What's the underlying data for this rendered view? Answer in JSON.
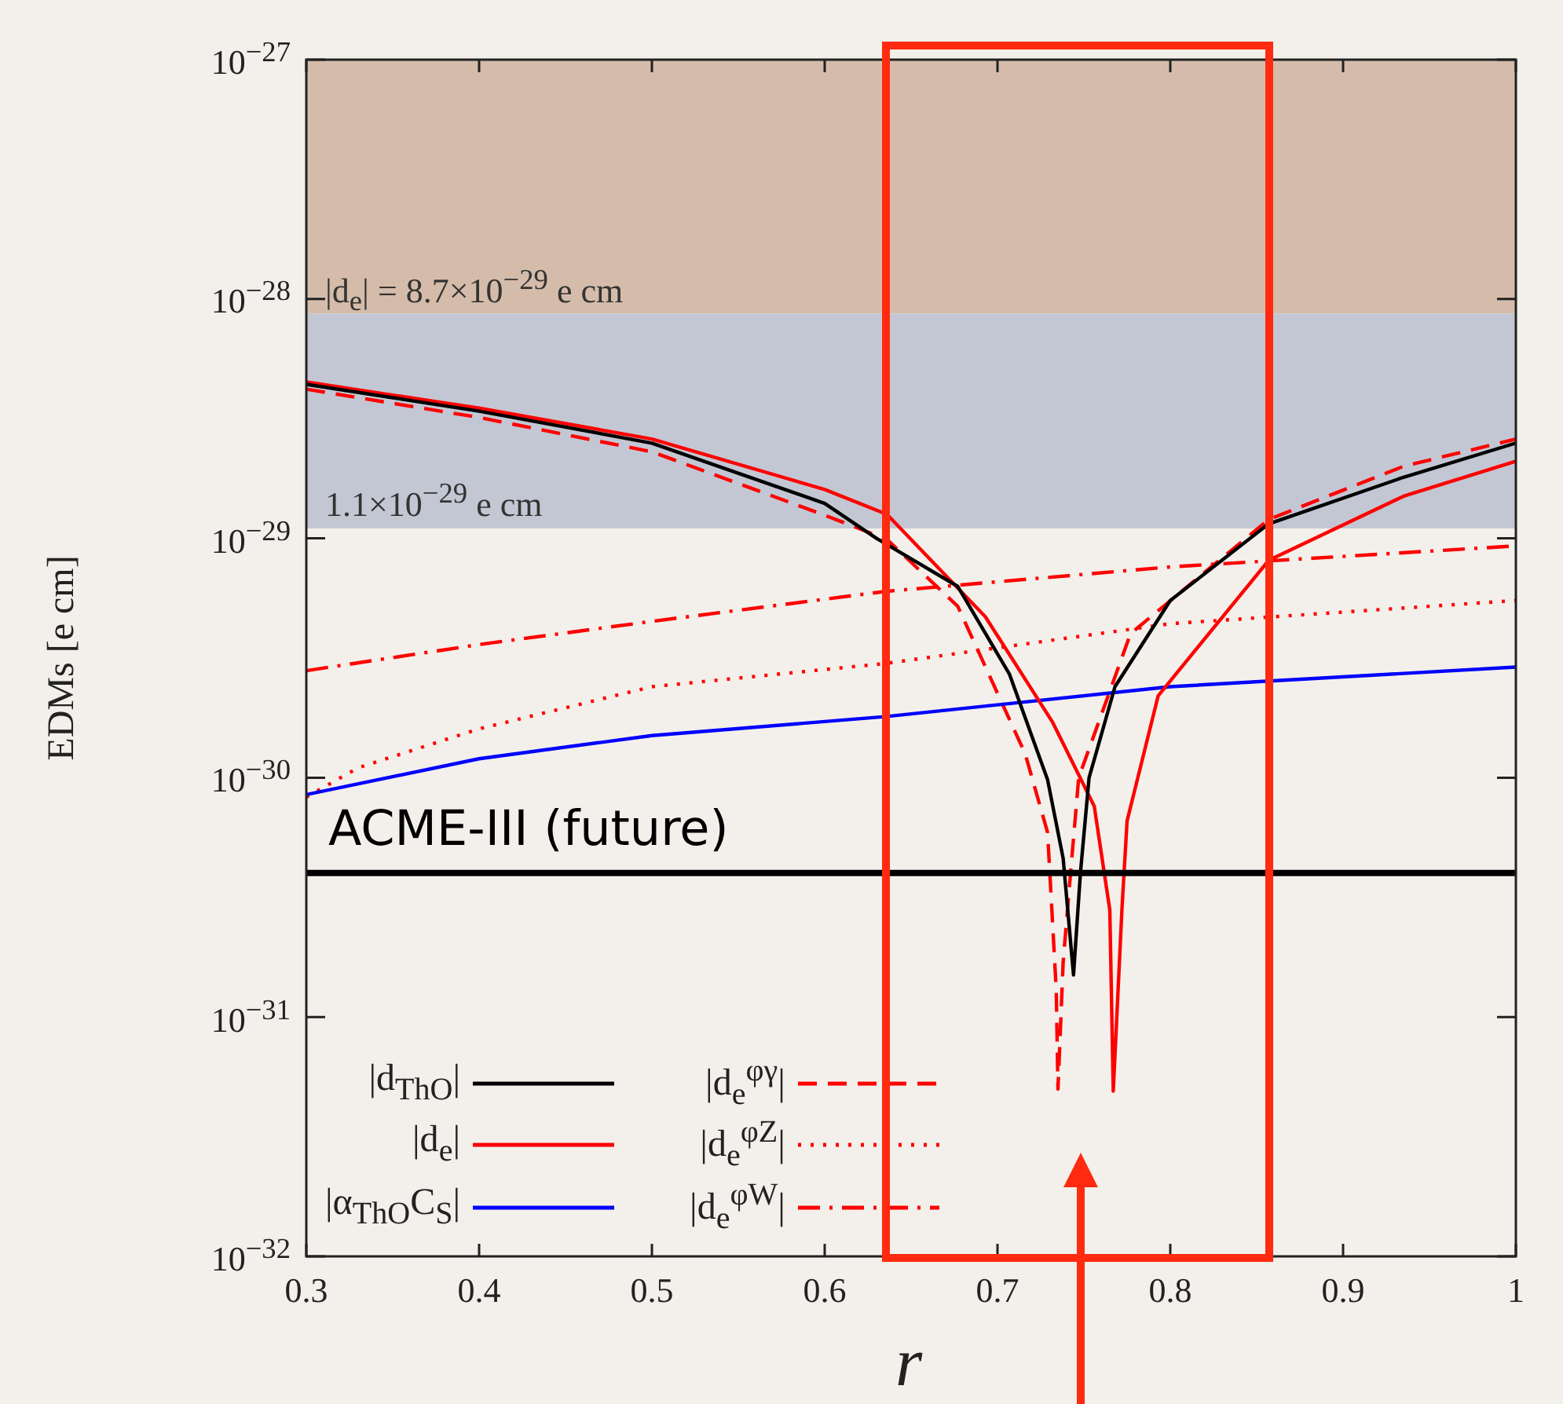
{
  "chart_data": {
    "type": "line",
    "xlabel": "r",
    "ylabel": "EDMs [e cm]",
    "xlim": [
      0.3,
      1
    ],
    "xticks": [
      0.3,
      0.4,
      0.5,
      0.6,
      0.7,
      0.8,
      0.9,
      1
    ],
    "ylim": [
      1e-32,
      1e-27
    ],
    "yticks": [
      {
        "value": 1e-32,
        "label": "10$^{−32}$"
      },
      {
        "value": 1e-31,
        "label": "10$^{−31}$"
      },
      {
        "value": 1e-30,
        "label": "10$^{−30}$"
      },
      {
        "value": 1e-29,
        "label": "10$^{−29}$"
      },
      {
        "value": 1e-28,
        "label": "10$^{−28}$"
      },
      {
        "value": 1e-27,
        "label": "10$^{−27}$"
      }
    ],
    "log": "y",
    "grid": false,
    "legend": "bottom left",
    "marker": "none",
    "series": [
      {
        "name": "|d$_{ThO}$|",
        "color": "#000000",
        "line_style": "solid",
        "x": [
          0.3,
          0.4,
          0.5,
          0.6,
          0.63,
          0.677,
          0.707,
          0.729,
          0.738,
          0.744,
          0.748,
          0.753,
          0.768,
          0.8,
          0.857,
          0.935,
          1
        ],
        "values": [
          4.4e-29,
          3.4e-29,
          2.5e-29,
          1.4e-29,
          1e-29,
          6.3e-30,
          2.7e-30,
          9.8e-31,
          4.6e-31,
          1.5e-31,
          4e-31,
          1e-30,
          2.4e-30,
          5.5e-30,
          1.15e-29,
          1.8e-29,
          2.5e-29
        ]
      },
      {
        "name": "|d$_{e}$|",
        "color": "#ff0000",
        "line_style": "solid",
        "x": [
          0.3,
          0.4,
          0.5,
          0.6,
          0.636,
          0.693,
          0.732,
          0.756,
          0.765,
          0.767,
          0.772,
          0.775,
          0.793,
          0.857,
          0.935,
          1
        ],
        "values": [
          4.5e-29,
          3.5e-29,
          2.6e-29,
          1.6e-29,
          1.26e-29,
          4.7e-30,
          1.7e-30,
          7.6e-31,
          2.8e-31,
          4.9e-32,
          2.8e-31,
          6.6e-31,
          2.2e-30,
          8.1e-30,
          1.5e-29,
          2.1e-29
        ]
      },
      {
        "name": "|α$_{ThO}$C$_{S}$|",
        "color": "#0000ff",
        "line_style": "solid",
        "x": [
          0.3,
          0.4,
          0.5,
          0.635,
          0.8,
          1
        ],
        "values": [
          8.5e-31,
          1.2e-30,
          1.5e-30,
          1.8e-30,
          2.4e-30,
          2.9e-30
        ]
      },
      {
        "name": "|d$_{e}$$^{φγ}$|",
        "color": "#ff0000",
        "line_style": "dashed",
        "x": [
          0.3,
          0.4,
          0.5,
          0.6,
          0.636,
          0.677,
          0.716,
          0.729,
          0.734,
          0.735,
          0.738,
          0.743,
          0.747,
          0.777,
          0.857,
          0.935,
          1
        ],
        "values": [
          4.2e-29,
          3.2e-29,
          2.3e-29,
          1.25e-29,
          9.9e-30,
          5.2e-30,
          1.26e-30,
          5.9e-31,
          1.3e-31,
          5e-32,
          1.7e-31,
          4.6e-31,
          1e-30,
          4e-30,
          1.2e-29,
          2e-29,
          2.6e-29
        ]
      },
      {
        "name": "|d$_{e}$$^{φZ}$|",
        "color": "#ff0000",
        "line_style": "dotted",
        "x": [
          0.3,
          0.33,
          0.4,
          0.5,
          0.635,
          0.8,
          1
        ],
        "values": [
          8.3e-31,
          1.1e-30,
          1.6e-30,
          2.4e-30,
          3e-30,
          4.4e-30,
          5.5e-30
        ]
      },
      {
        "name": "|d$_{e}$$^{φW}$|",
        "color": "#ff0000",
        "line_style": "dashdot",
        "x": [
          0.3,
          0.4,
          0.5,
          0.635,
          0.8,
          1
        ],
        "values": [
          2.8e-30,
          3.6e-30,
          4.5e-30,
          6e-30,
          7.6e-30,
          9.3e-30
        ]
      }
    ],
    "bands": [
      {
        "axis": "y",
        "from": 8.7e-29,
        "to": 1e-27,
        "label": "|d$_{e}$| = 8.7×10$^{−29}$ e cm",
        "color": "#d5bcaa"
      },
      {
        "axis": "y",
        "from": 1.1e-29,
        "to": 8.7e-29,
        "label": "1.1×10$^{−29}$ e cm",
        "color": "#c3c7d3"
      }
    ],
    "ref_lines": [
      {
        "axis": "y",
        "value": 4e-31,
        "label": "ACME-III (future)",
        "color": "#000000"
      }
    ]
  }
}
